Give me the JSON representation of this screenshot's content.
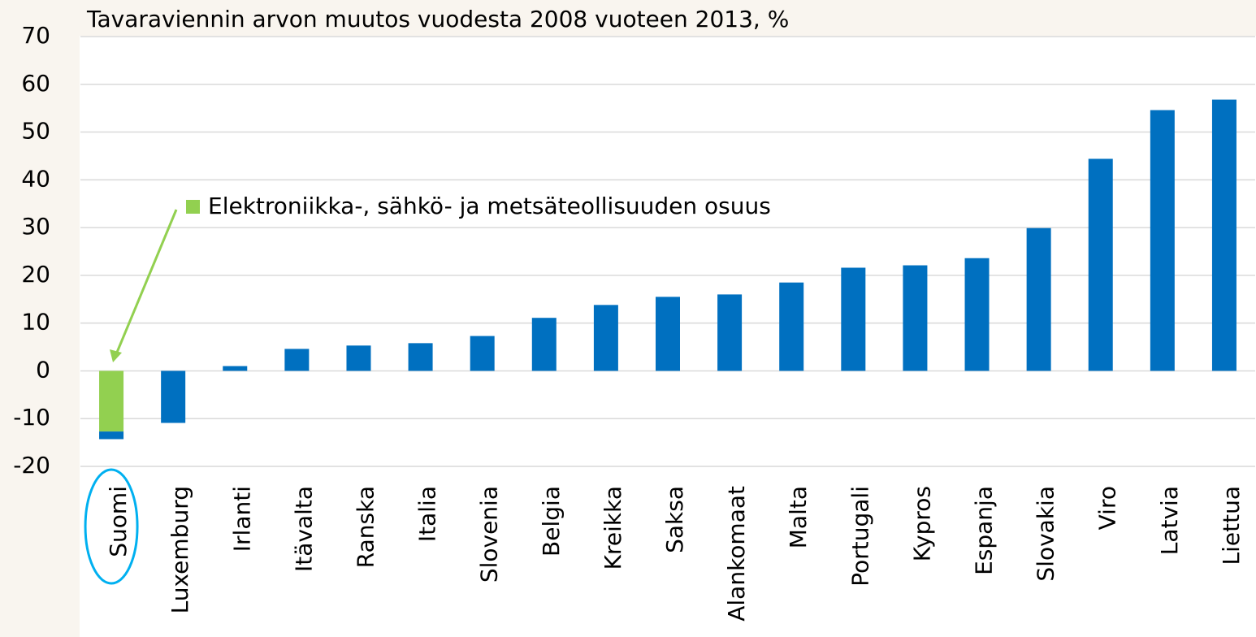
{
  "chart_data": {
    "type": "bar",
    "title": "Tavaraviennin arvon muutos vuodesta 2008 vuoteen 2013, %",
    "categories": [
      "Suomi",
      "Luxemburg",
      "Irlanti",
      "Itävalta",
      "Ranska",
      "Italia",
      "Slovenia",
      "Belgia",
      "Kreikka",
      "Saksa",
      "Alankomaat",
      "Malta",
      "Portugali",
      "Kypros",
      "Espanja",
      "Slovakia",
      "Viro",
      "Latvia",
      "Liettua"
    ],
    "series": [
      {
        "color": "#0070c0",
        "values": [
          -1.6,
          -10.9,
          1.0,
          4.6,
          5.3,
          5.8,
          7.3,
          11.1,
          13.8,
          15.5,
          16.0,
          18.5,
          21.6,
          22.1,
          23.6,
          29.9,
          44.4,
          54.6,
          56.8
        ]
      },
      {
        "name": "Elektroniikka-, sähkö- ja metsäteollisuuden osuus",
        "color": "#92d050",
        "values": [
          -12.7,
          null,
          null,
          null,
          null,
          null,
          null,
          null,
          null,
          null,
          null,
          null,
          null,
          null,
          null,
          null,
          null,
          null,
          null
        ]
      }
    ],
    "ylim": [
      -20,
      70
    ],
    "yticks": [
      -20,
      -10,
      0,
      10,
      20,
      30,
      40,
      50,
      60,
      70
    ],
    "grid": true
  }
}
